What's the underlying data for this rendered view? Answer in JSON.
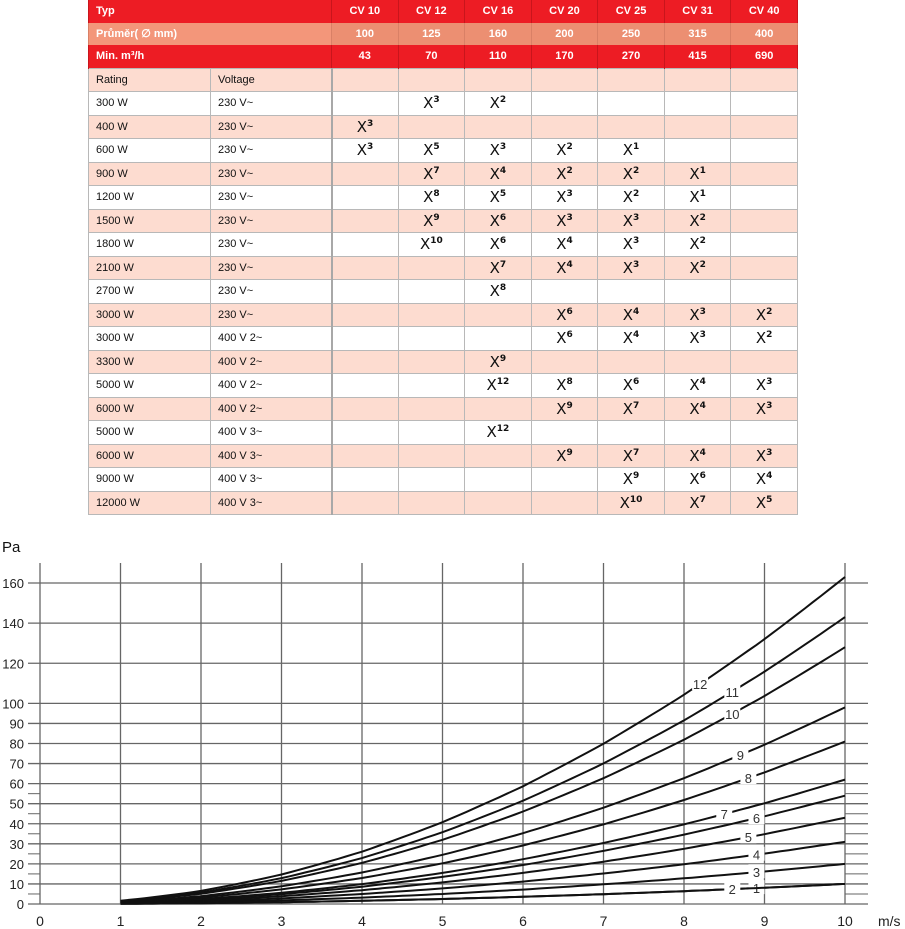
{
  "table": {
    "header": {
      "type_label": "Typ",
      "diameter_label": "Průměr(   ∅ mm)",
      "min_flow_label": "Min. m³/h",
      "rating_label": "Rating",
      "voltage_label": "Voltage",
      "models": [
        "CV 10",
        "CV 12",
        "CV 16",
        "CV 20",
        "CV 25",
        "CV 31",
        "CV 40"
      ],
      "diameters": [
        "100",
        "125",
        "160",
        "200",
        "250",
        "315",
        "400"
      ],
      "min_flows": [
        "43",
        "70",
        "110",
        "170",
        "270",
        "415",
        "690"
      ]
    },
    "mark": "X",
    "rows": [
      {
        "rating": "300 W",
        "voltage": "230 V~",
        "cells": [
          null,
          "3",
          "2",
          null,
          null,
          null,
          null
        ]
      },
      {
        "rating": "400 W",
        "voltage": "230 V~",
        "cells": [
          "3",
          null,
          null,
          null,
          null,
          null,
          null
        ]
      },
      {
        "rating": "600 W",
        "voltage": "230 V~",
        "cells": [
          "3",
          "5",
          "3",
          "2",
          "1",
          null,
          null
        ]
      },
      {
        "rating": "900 W",
        "voltage": "230 V~",
        "cells": [
          null,
          "7",
          "4",
          "2",
          "2",
          "1",
          null
        ]
      },
      {
        "rating": "1200 W",
        "voltage": "230 V~",
        "cells": [
          null,
          "8",
          "5",
          "3",
          "2",
          "1",
          null
        ]
      },
      {
        "rating": "1500 W",
        "voltage": "230 V~",
        "cells": [
          null,
          "9",
          "6",
          "3",
          "3",
          "2",
          null
        ]
      },
      {
        "rating": "1800 W",
        "voltage": "230 V~",
        "cells": [
          null,
          "10",
          "6",
          "4",
          "3",
          "2",
          null
        ]
      },
      {
        "rating": "2100 W",
        "voltage": "230 V~",
        "cells": [
          null,
          null,
          "7",
          "4",
          "3",
          "2",
          null
        ]
      },
      {
        "rating": "2700 W",
        "voltage": "230 V~",
        "cells": [
          null,
          null,
          "8",
          null,
          null,
          null,
          null
        ]
      },
      {
        "rating": "3000 W",
        "voltage": "230 V~",
        "cells": [
          null,
          null,
          null,
          "6",
          "4",
          "3",
          "2"
        ]
      },
      {
        "rating": "3000 W",
        "voltage": "400 V 2~",
        "cells": [
          null,
          null,
          null,
          "6",
          "4",
          "3",
          "2"
        ]
      },
      {
        "rating": "3300 W",
        "voltage": "400 V 2~",
        "cells": [
          null,
          null,
          "9",
          null,
          null,
          null,
          null
        ]
      },
      {
        "rating": "5000 W",
        "voltage": "400 V 2~",
        "cells": [
          null,
          null,
          "12",
          "8",
          "6",
          "4",
          "3"
        ]
      },
      {
        "rating": "6000 W",
        "voltage": "400 V 2~",
        "cells": [
          null,
          null,
          null,
          "9",
          "7",
          "4",
          "3"
        ]
      },
      {
        "rating": "5000 W",
        "voltage": "400 V 3~",
        "cells": [
          null,
          null,
          "12",
          null,
          null,
          null,
          null
        ]
      },
      {
        "rating": "6000 W",
        "voltage": "400 V 3~",
        "cells": [
          null,
          null,
          null,
          "9",
          "7",
          "4",
          "3"
        ]
      },
      {
        "rating": "9000 W",
        "voltage": "400 V 3~",
        "cells": [
          null,
          null,
          null,
          null,
          "9",
          "6",
          "4"
        ]
      },
      {
        "rating": "12000 W",
        "voltage": "400 V 3~",
        "cells": [
          null,
          null,
          null,
          null,
          "10",
          "7",
          "5"
        ]
      }
    ],
    "colors": {
      "header_red": "#ed1c24",
      "diameter_row": "#ec8f72",
      "pink_row": "#fddcd0"
    }
  },
  "chart_data": {
    "type": "line",
    "xlabel": "m/s",
    "ylabel": "Pa",
    "xlim": [
      0,
      10
    ],
    "ylim": [
      0,
      160
    ],
    "x_ticks": [
      "0",
      "1",
      "2",
      "3",
      "4",
      "5",
      "6",
      "7",
      "8",
      "9",
      "10"
    ],
    "y_ticks": [
      "0",
      "10",
      "20",
      "30",
      "40",
      "50",
      "60",
      "70",
      "80",
      "90",
      "100",
      "120",
      "140",
      "160"
    ],
    "grid": true,
    "x": [
      1,
      2,
      3,
      4,
      5,
      6,
      7,
      8,
      9,
      10
    ],
    "series": [
      {
        "name": "1",
        "values": [
          0.1,
          0.4,
          0.9,
          1.6,
          2.5,
          3.6,
          4.9,
          6.4,
          8.1,
          10
        ]
      },
      {
        "name": "2",
        "values": [
          0.1,
          0.4,
          0.9,
          1.6,
          2.5,
          3.6,
          4.9,
          6.4,
          8.1,
          10
        ]
      },
      {
        "name": "3",
        "values": [
          0.2,
          0.8,
          1.8,
          3.2,
          5,
          7.2,
          9.8,
          12.8,
          16.2,
          20
        ]
      },
      {
        "name": "4",
        "values": [
          0.3,
          1.2,
          2.8,
          5,
          7.8,
          11.2,
          15.2,
          19.8,
          25.1,
          31
        ]
      },
      {
        "name": "5",
        "values": [
          0.4,
          1.7,
          3.9,
          6.9,
          10.8,
          15.5,
          21.1,
          27.5,
          34.8,
          43
        ]
      },
      {
        "name": "6",
        "values": [
          0.5,
          2.2,
          4.9,
          8.6,
          13.5,
          19.4,
          26.5,
          34.6,
          43.7,
          54
        ]
      },
      {
        "name": "7",
        "values": [
          0.6,
          2.5,
          5.6,
          9.9,
          15.5,
          22.3,
          30.4,
          39.7,
          50.2,
          62
        ]
      },
      {
        "name": "8",
        "values": [
          0.8,
          3.2,
          7.3,
          13,
          20.3,
          29.2,
          39.7,
          51.8,
          65.6,
          81
        ]
      },
      {
        "name": "9",
        "values": [
          1,
          3.9,
          8.8,
          15.7,
          24.5,
          35.3,
          48,
          62.7,
          79.4,
          98
        ]
      },
      {
        "name": "10",
        "values": [
          1.3,
          5.1,
          11.5,
          20.5,
          32,
          46.1,
          62.7,
          81.9,
          103.7,
          128
        ]
      },
      {
        "name": "11",
        "values": [
          1.4,
          5.7,
          12.9,
          22.9,
          35.8,
          51.5,
          70.1,
          91.5,
          115.8,
          143
        ]
      },
      {
        "name": "12",
        "values": [
          1.6,
          6.5,
          14.7,
          26.1,
          40.8,
          58.7,
          79.9,
          104.3,
          132,
          163
        ]
      }
    ],
    "line_color": "#111111"
  }
}
